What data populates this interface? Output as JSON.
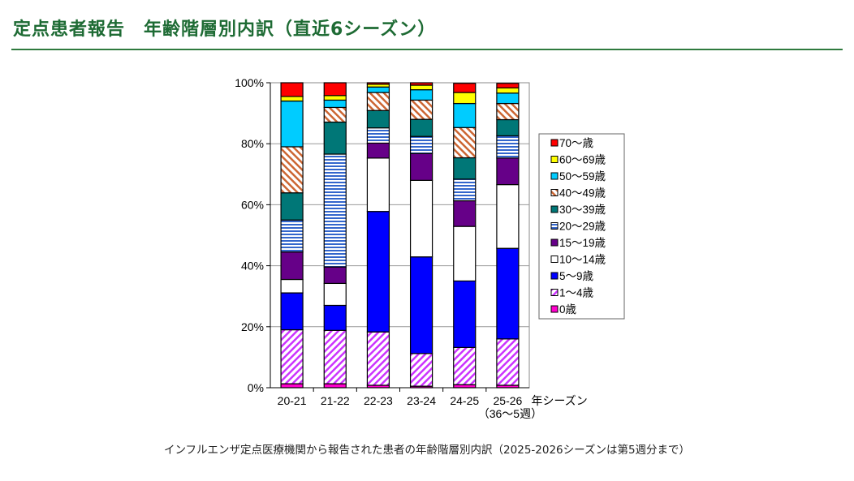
{
  "header": {
    "title": "定点患者報告　年齢階層別内訳（直近6シーズン）"
  },
  "caption": "インフルエンザ定点医療機関から報告された患者の年齢階層別内訳（2025-2026シーズンは第5週分まで）",
  "colors": {
    "title": "#1e6b34"
  },
  "chart_data": {
    "type": "bar",
    "stacked": true,
    "categories": [
      "20-21",
      "21-22",
      "22-23",
      "23-24",
      "24-25",
      "25-26"
    ],
    "category_note": "（36〜5週）",
    "xlabel": "年シーズン",
    "ylim": [
      0,
      100
    ],
    "yticks": [
      "0%",
      "20%",
      "40%",
      "60%",
      "80%",
      "100%"
    ],
    "grid": true,
    "legend_position": "right",
    "series": [
      {
        "name": "0歳",
        "color": "#ff00cc",
        "pattern": "solid",
        "values": [
          1.3,
          1.3,
          0.8,
          0.5,
          1.0,
          0.8
        ]
      },
      {
        "name": "1〜4歳",
        "color": "#cc33ff",
        "pattern": "diag-down",
        "values": [
          17.7,
          17.5,
          17.5,
          10.7,
          12.2,
          15.2
        ]
      },
      {
        "name": "5〜9歳",
        "color": "#0000ff",
        "pattern": "solid",
        "values": [
          12.1,
          8.2,
          39.5,
          31.7,
          21.8,
          29.7
        ]
      },
      {
        "name": "10〜14歳",
        "color": "#ffffff",
        "pattern": "solid",
        "values": [
          4.4,
          7.2,
          17.5,
          25.1,
          17.9,
          20.9
        ]
      },
      {
        "name": "15〜19歳",
        "color": "#660088",
        "pattern": "solid",
        "values": [
          9.0,
          5.4,
          4.9,
          8.8,
          8.4,
          8.7
        ]
      },
      {
        "name": "20〜29歳",
        "color": "#3366cc",
        "pattern": "horizontal",
        "values": [
          10.5,
          37.0,
          5.0,
          5.6,
          7.1,
          7.3
        ]
      },
      {
        "name": "30〜39歳",
        "color": "#007777",
        "pattern": "solid",
        "values": [
          8.9,
          10.5,
          5.7,
          5.6,
          7.0,
          5.3
        ]
      },
      {
        "name": "40〜49歳",
        "color": "#cc6633",
        "pattern": "diag-up",
        "values": [
          15.1,
          4.8,
          5.9,
          6.3,
          9.9,
          5.3
        ]
      },
      {
        "name": "50〜59歳",
        "color": "#00ccff",
        "pattern": "solid",
        "values": [
          15.0,
          2.4,
          1.8,
          3.4,
          7.9,
          3.4
        ]
      },
      {
        "name": "60〜69歳",
        "color": "#ffff00",
        "pattern": "solid",
        "values": [
          1.5,
          1.5,
          0.9,
          1.5,
          3.6,
          1.7
        ]
      },
      {
        "name": "70〜歳",
        "color": "#ff0000",
        "pattern": "solid",
        "values": [
          4.5,
          4.2,
          0.5,
          0.8,
          3.0,
          1.5
        ]
      }
    ]
  }
}
